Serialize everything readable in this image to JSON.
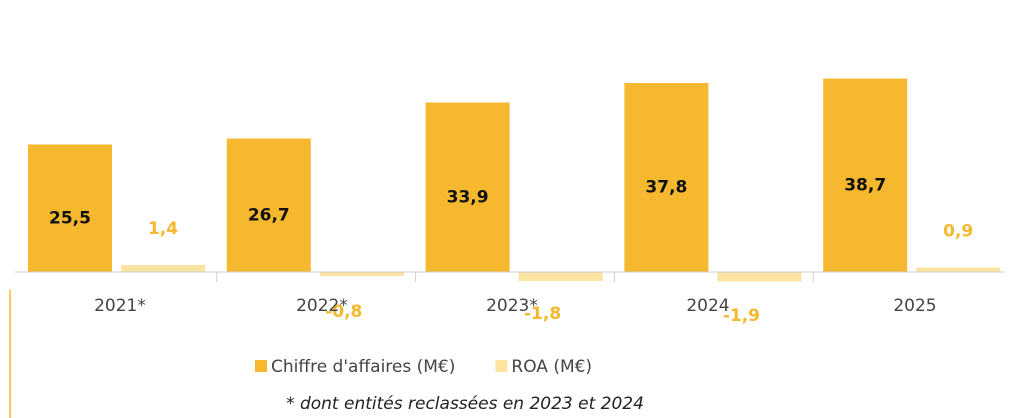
{
  "chart_data": {
    "type": "bar",
    "categories": [
      "2021*",
      "2022*",
      "2023*",
      "2024",
      "2025"
    ],
    "series": [
      {
        "name": "Chiffre d'affaires (M€)",
        "color": "#f5b82e",
        "values": [
          25.5,
          26.7,
          33.9,
          37.8,
          38.7
        ],
        "value_labels": [
          "25,5",
          "26,7",
          "33,9",
          "37,8",
          "38,7"
        ]
      },
      {
        "name": "ROA (M€)",
        "color": "#fbe3a1",
        "values": [
          1.4,
          -0.8,
          -1.8,
          -1.9,
          0.9
        ],
        "value_labels": [
          "1,4",
          "-0,8",
          "-1,8",
          "-1,9",
          "0,9"
        ]
      }
    ],
    "ylim": [
      -5,
      50
    ],
    "note": "* dont entités reclassées en 2023 et 2024"
  }
}
